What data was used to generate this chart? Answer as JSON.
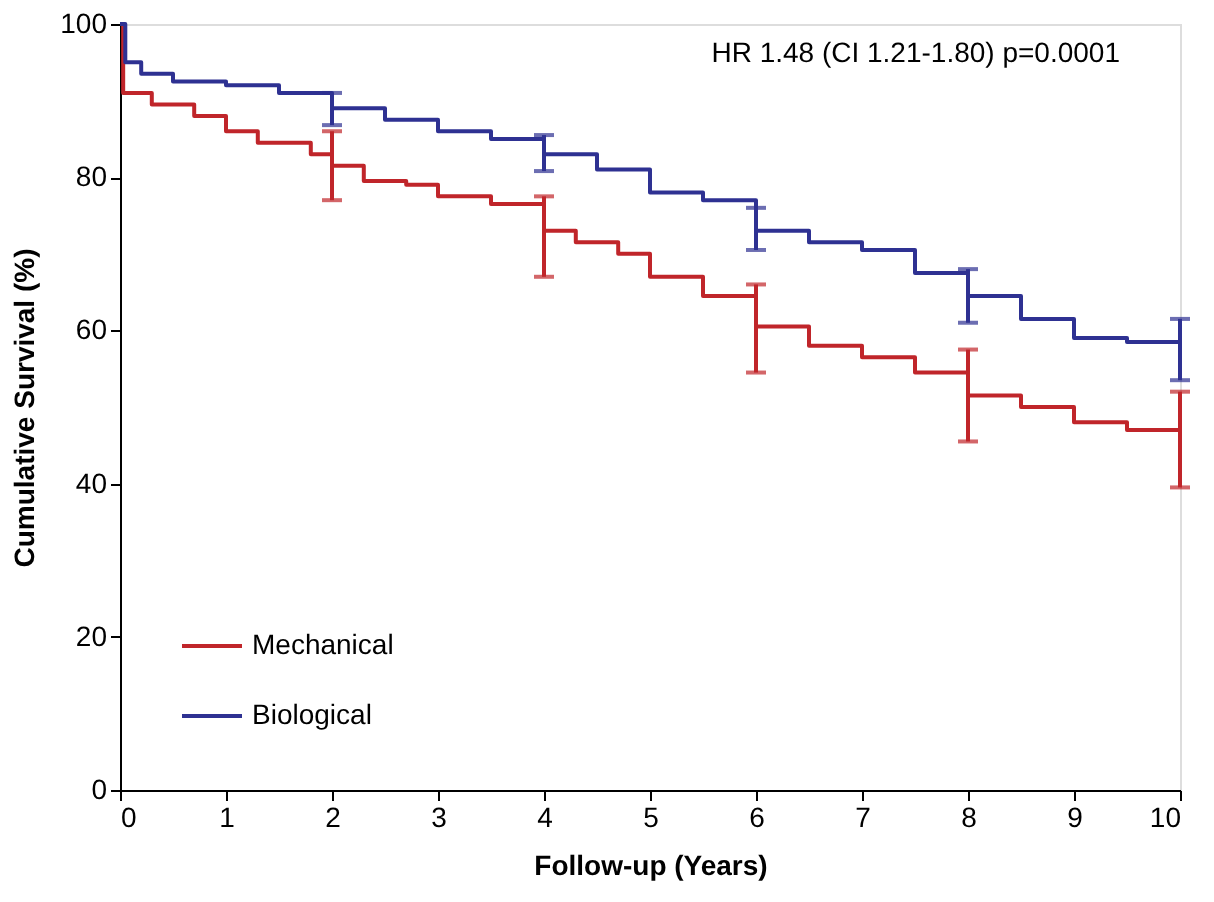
{
  "chart_data": {
    "type": "step",
    "xlabel": "Follow-up (Years)",
    "ylabel": "Cumulative Survival (%)",
    "annotations": [
      "HR 1.48 (CI 1.21-1.80) p=0.0001"
    ],
    "xlim": [
      0,
      10
    ],
    "xticks": [
      0,
      1,
      2,
      3,
      4,
      5,
      6,
      7,
      8,
      9,
      10
    ],
    "ylim": [
      0,
      100
    ],
    "yticks": [
      0,
      20,
      40,
      60,
      80,
      100
    ],
    "grid": false,
    "legend": "bottom left",
    "line_style": "solid",
    "marker": "none",
    "series": [
      {
        "name": "Mechanical",
        "color": "#c0252a",
        "x": [
          0,
          0.03,
          0.3,
          0.7,
          1,
          1.3,
          1.8,
          2,
          2.3,
          2.7,
          3,
          3.5,
          4,
          4.3,
          4.7,
          5,
          5.5,
          6,
          6.5,
          7,
          7.5,
          8,
          8.5,
          9,
          9.5,
          10
        ],
        "values": [
          100,
          91,
          89.5,
          88,
          86,
          84.5,
          83,
          81.5,
          79.5,
          79,
          77.5,
          76.5,
          73,
          71.5,
          70,
          67,
          64.5,
          60.5,
          58,
          56.5,
          54.5,
          51.5,
          50,
          48,
          47,
          46
        ],
        "errors": [
          null,
          null,
          null,
          null,
          null,
          null,
          null,
          [
            77,
            86
          ],
          null,
          null,
          null,
          null,
          [
            67,
            77.5
          ],
          null,
          null,
          null,
          null,
          [
            54.5,
            66
          ],
          null,
          null,
          null,
          [
            45.5,
            57.5
          ],
          null,
          null,
          null,
          [
            39.5,
            52
          ]
        ]
      },
      {
        "name": "Biological",
        "color": "#2e3192",
        "x": [
          0,
          0.05,
          0.2,
          0.5,
          1,
          1.5,
          2,
          2.5,
          3,
          3.5,
          4,
          4.5,
          5,
          5.5,
          6,
          6.5,
          7,
          7.5,
          8,
          8.5,
          9,
          9.5,
          10
        ],
        "values": [
          100,
          95,
          93.5,
          92.5,
          92,
          91,
          89,
          87.5,
          86,
          85,
          83,
          81,
          78,
          77,
          73,
          71.5,
          70.5,
          67.5,
          64.5,
          61.5,
          59,
          58.5,
          58
        ],
        "errors": [
          null,
          null,
          null,
          null,
          null,
          null,
          [
            86.8,
            91
          ],
          null,
          null,
          null,
          [
            80.8,
            85.5
          ],
          null,
          null,
          null,
          [
            70.5,
            76
          ],
          null,
          null,
          null,
          [
            61,
            68
          ],
          null,
          null,
          null,
          [
            53.5,
            61.5
          ]
        ]
      }
    ]
  }
}
